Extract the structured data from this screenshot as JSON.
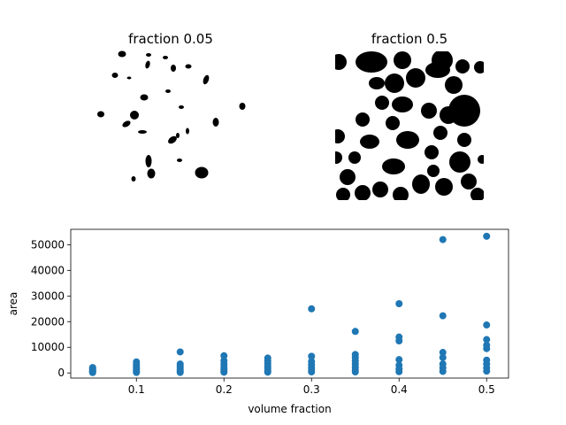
{
  "panels": [
    {
      "title": "fraction 0.05"
    },
    {
      "title": "fraction 0.5"
    }
  ],
  "chart_data": {
    "type": "scatter",
    "xlabel": "volume fraction",
    "ylabel": "area",
    "xlim": [
      0.025,
      0.525
    ],
    "ylim": [
      -2000,
      56000
    ],
    "x_ticks": [
      0.1,
      0.2,
      0.3,
      0.4,
      0.5
    ],
    "x_tick_labels": [
      "0.1",
      "0.2",
      "0.3",
      "0.4",
      "0.5"
    ],
    "y_ticks": [
      0,
      10000,
      20000,
      30000,
      40000,
      50000
    ],
    "y_tick_labels": [
      "0",
      "10000",
      "20000",
      "30000",
      "40000",
      "50000"
    ],
    "grid": false,
    "marker_color": "#1f77b4",
    "series": [
      {
        "points": [
          [
            0.05,
            150
          ],
          [
            0.05,
            400
          ],
          [
            0.05,
            700
          ],
          [
            0.05,
            1000
          ],
          [
            0.05,
            1400
          ],
          [
            0.05,
            1800
          ],
          [
            0.05,
            2100
          ],
          [
            0.1,
            200
          ],
          [
            0.1,
            600
          ],
          [
            0.1,
            1100
          ],
          [
            0.1,
            1700
          ],
          [
            0.1,
            2500
          ],
          [
            0.1,
            3300
          ],
          [
            0.1,
            4300
          ],
          [
            0.15,
            200
          ],
          [
            0.15,
            700
          ],
          [
            0.15,
            1300
          ],
          [
            0.15,
            2000
          ],
          [
            0.15,
            2800
          ],
          [
            0.15,
            3500
          ],
          [
            0.15,
            8200
          ],
          [
            0.2,
            300
          ],
          [
            0.2,
            900
          ],
          [
            0.2,
            1600
          ],
          [
            0.2,
            2400
          ],
          [
            0.2,
            3500
          ],
          [
            0.2,
            4800
          ],
          [
            0.2,
            6700
          ],
          [
            0.25,
            300
          ],
          [
            0.25,
            900
          ],
          [
            0.25,
            1700
          ],
          [
            0.25,
            2600
          ],
          [
            0.25,
            3600
          ],
          [
            0.25,
            4700
          ],
          [
            0.25,
            5800
          ],
          [
            0.3,
            400
          ],
          [
            0.3,
            1100
          ],
          [
            0.3,
            2000
          ],
          [
            0.3,
            3200
          ],
          [
            0.3,
            4500
          ],
          [
            0.3,
            6500
          ],
          [
            0.3,
            25000
          ],
          [
            0.35,
            400
          ],
          [
            0.35,
            1200
          ],
          [
            0.35,
            2200
          ],
          [
            0.35,
            3500
          ],
          [
            0.35,
            4700
          ],
          [
            0.35,
            6000
          ],
          [
            0.35,
            7200
          ],
          [
            0.35,
            16200
          ],
          [
            0.4,
            500
          ],
          [
            0.4,
            1500
          ],
          [
            0.4,
            3000
          ],
          [
            0.4,
            5200
          ],
          [
            0.4,
            12500
          ],
          [
            0.4,
            14000
          ],
          [
            0.4,
            27000
          ],
          [
            0.45,
            600
          ],
          [
            0.45,
            2000
          ],
          [
            0.45,
            3500
          ],
          [
            0.45,
            6000
          ],
          [
            0.45,
            8000
          ],
          [
            0.45,
            22300
          ],
          [
            0.45,
            52000
          ],
          [
            0.5,
            700
          ],
          [
            0.5,
            2000
          ],
          [
            0.5,
            3500
          ],
          [
            0.5,
            5000
          ],
          [
            0.5,
            9500
          ],
          [
            0.5,
            10800
          ],
          [
            0.5,
            13000
          ],
          [
            0.5,
            18700
          ],
          [
            0.5,
            53300
          ]
        ]
      }
    ]
  }
}
